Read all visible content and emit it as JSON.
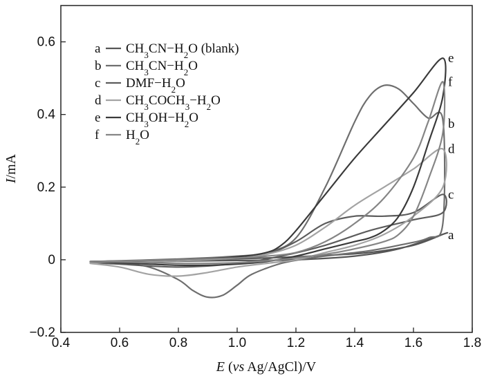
{
  "chart_data": {
    "type": "line",
    "title": "",
    "xlabel": {
      "var": "E",
      "text": " (",
      "italic": "vs",
      "rest": " Ag/AgCl)/V"
    },
    "ylabel": {
      "var": "I",
      "text": "/mA"
    },
    "xlim": [
      0.4,
      1.8
    ],
    "ylim": [
      -0.2,
      0.7
    ],
    "xticks": [
      0.4,
      0.6,
      0.8,
      1.0,
      1.2,
      1.4,
      1.6,
      1.8
    ],
    "xtick_labels": [
      "0.4",
      "0.6",
      "0.8",
      "1.0",
      "1.2",
      "1.4",
      "1.6",
      "1.8"
    ],
    "yticks": [
      -0.2,
      0,
      0.2,
      0.4,
      0.6
    ],
    "ytick_labels": [
      "−0.2",
      "0",
      "0.2",
      "0.4",
      "0.6"
    ],
    "legend_position": "top-left",
    "series": [
      {
        "id": "a",
        "letter": "a",
        "name": "CH₃CN−H₂O (blank)",
        "legend_parts": [
          [
            "CH",
            0
          ],
          [
            "3",
            1
          ],
          [
            "CN−H",
            0
          ],
          [
            "2",
            1
          ],
          [
            "O (blank)",
            0
          ]
        ],
        "color": "#555555",
        "end_label": "a",
        "end_label_y": 0.068,
        "x": [
          0.5,
          0.7,
          0.9,
          1.1,
          1.3,
          1.45,
          1.6,
          1.7,
          1.7,
          1.55,
          1.4,
          1.2,
          1.0,
          0.8,
          0.6,
          0.5
        ],
        "y": [
          -0.005,
          -0.002,
          0.001,
          0.005,
          0.012,
          0.02,
          0.04,
          0.07,
          0.07,
          0.03,
          0.01,
          0.0,
          -0.002,
          -0.004,
          -0.006,
          -0.005
        ]
      },
      {
        "id": "b",
        "letter": "b",
        "name": "CH₃CN−H₂O",
        "legend_parts": [
          [
            "CH",
            0
          ],
          [
            "3",
            1
          ],
          [
            "CN−H",
            0
          ],
          [
            "2",
            1
          ],
          [
            "O",
            0
          ]
        ],
        "color": "#6e6e6e",
        "end_label": "b",
        "end_label_y": 0.375,
        "x": [
          0.5,
          0.8,
          1.0,
          1.1,
          1.2,
          1.3,
          1.4,
          1.45,
          1.5,
          1.55,
          1.6,
          1.65,
          1.7,
          1.7,
          1.65,
          1.55,
          1.45,
          1.35,
          1.25,
          1.15,
          1.05,
          1.0,
          0.95,
          0.9,
          0.85,
          0.8,
          0.7,
          0.6,
          0.5
        ],
        "y": [
          -0.005,
          0.002,
          0.01,
          0.02,
          0.06,
          0.2,
          0.38,
          0.45,
          0.48,
          0.47,
          0.43,
          0.39,
          0.385,
          0.1,
          0.06,
          0.04,
          0.025,
          0.015,
          0.005,
          -0.01,
          -0.04,
          -0.07,
          -0.098,
          -0.103,
          -0.085,
          -0.055,
          -0.02,
          -0.01,
          -0.005
        ]
      },
      {
        "id": "c",
        "letter": "c",
        "name": "DMF−H₂O",
        "legend_parts": [
          [
            "DMF−H",
            0
          ],
          [
            "2",
            1
          ],
          [
            "O",
            0
          ]
        ],
        "color": "#5c5c5c",
        "end_label": "c",
        "end_label_y": 0.18,
        "x": [
          0.5,
          0.8,
          1.0,
          1.1,
          1.2,
          1.3,
          1.4,
          1.5,
          1.6,
          1.7,
          1.7,
          1.6,
          1.45,
          1.3,
          1.15,
          1.0,
          0.8,
          0.6,
          0.5
        ],
        "y": [
          -0.005,
          -0.002,
          0.005,
          0.015,
          0.05,
          0.1,
          0.12,
          0.12,
          0.13,
          0.18,
          0.13,
          0.11,
          0.08,
          0.04,
          0.01,
          -0.01,
          -0.02,
          -0.012,
          -0.008
        ]
      },
      {
        "id": "d",
        "letter": "d",
        "name": "CH₃COCH₃−H₂O",
        "legend_parts": [
          [
            "CH",
            0
          ],
          [
            "3",
            1
          ],
          [
            "COCH",
            0
          ],
          [
            "3",
            1
          ],
          [
            "−H",
            0
          ],
          [
            "2",
            1
          ],
          [
            "O",
            0
          ]
        ],
        "color": "#a3a3a3",
        "end_label": "d",
        "end_label_y": 0.305,
        "x": [
          0.5,
          0.8,
          1.0,
          1.1,
          1.2,
          1.3,
          1.4,
          1.5,
          1.6,
          1.7,
          1.7,
          1.6,
          1.5,
          1.4,
          1.3,
          1.2,
          1.1,
          1.0,
          0.9,
          0.8,
          0.7,
          0.6,
          0.5
        ],
        "y": [
          -0.008,
          -0.003,
          0.005,
          0.015,
          0.04,
          0.09,
          0.15,
          0.2,
          0.25,
          0.305,
          0.2,
          0.12,
          0.07,
          0.04,
          0.02,
          0.0,
          -0.01,
          -0.02,
          -0.035,
          -0.045,
          -0.04,
          -0.02,
          -0.01
        ]
      },
      {
        "id": "e",
        "letter": "e",
        "name": "CH₃OH−H₂O",
        "legend_parts": [
          [
            "CH",
            0
          ],
          [
            "3",
            1
          ],
          [
            "OH−H",
            0
          ],
          [
            "2",
            1
          ],
          [
            "O",
            0
          ]
        ],
        "color": "#3a3a3a",
        "end_label": "e",
        "end_label_y": 0.555,
        "x": [
          0.5,
          0.8,
          1.0,
          1.1,
          1.15,
          1.2,
          1.3,
          1.4,
          1.5,
          1.6,
          1.7,
          1.7,
          1.65,
          1.6,
          1.55,
          1.5,
          1.45,
          1.4,
          1.3,
          1.2,
          1.1,
          1.0,
          0.9,
          0.8,
          0.7,
          0.6,
          0.5
        ],
        "y": [
          -0.005,
          0.0,
          0.008,
          0.02,
          0.04,
          0.08,
          0.18,
          0.28,
          0.37,
          0.46,
          0.555,
          0.45,
          0.32,
          0.2,
          0.12,
          0.08,
          0.06,
          0.05,
          0.03,
          0.01,
          -0.005,
          -0.012,
          -0.015,
          -0.015,
          -0.012,
          -0.008,
          -0.005
        ]
      },
      {
        "id": "f",
        "letter": "f",
        "name": "H₂O",
        "legend_parts": [
          [
            "H",
            0
          ],
          [
            "2",
            1
          ],
          [
            "O",
            0
          ]
        ],
        "color": "#858585",
        "end_label": "f",
        "end_label_y": 0.49,
        "x": [
          0.5,
          0.8,
          1.0,
          1.1,
          1.2,
          1.3,
          1.4,
          1.5,
          1.6,
          1.65,
          1.7,
          1.7,
          1.65,
          1.6,
          1.55,
          1.5,
          1.4,
          1.3,
          1.2,
          1.1,
          1.0,
          0.9,
          0.8,
          0.7,
          0.6,
          0.5
        ],
        "y": [
          -0.005,
          0.0,
          0.005,
          0.01,
          0.02,
          0.05,
          0.1,
          0.17,
          0.28,
          0.38,
          0.49,
          0.35,
          0.22,
          0.12,
          0.07,
          0.05,
          0.03,
          0.015,
          0.005,
          -0.003,
          -0.008,
          -0.01,
          -0.01,
          -0.008,
          -0.006,
          -0.005
        ]
      }
    ]
  }
}
